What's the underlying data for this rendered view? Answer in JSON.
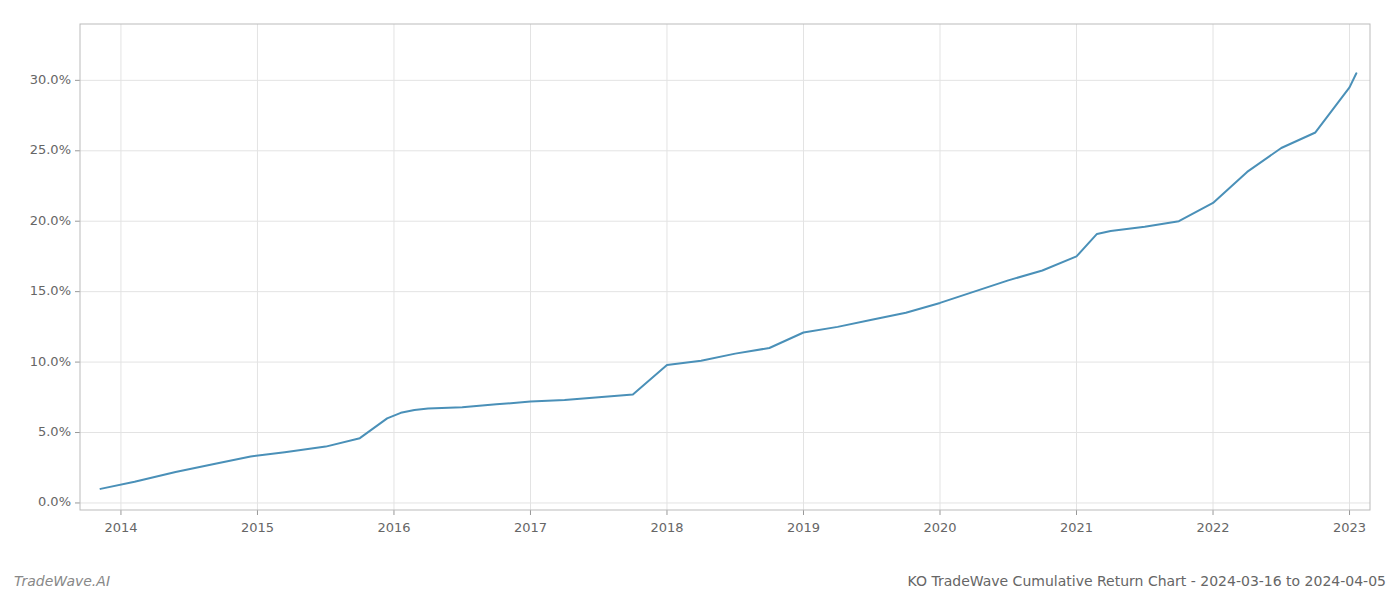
{
  "chart_data": {
    "type": "line",
    "title": "KO TradeWave Cumulative Return Chart - 2024-03-16 to 2024-04-05",
    "annotations": [
      "TradeWave.AI"
    ],
    "color": "#4a90b8",
    "grid": true,
    "x": [
      2013.85,
      2014.1,
      2014.4,
      2014.7,
      2014.95,
      2015.2,
      2015.5,
      2015.75,
      2015.95,
      2016.05,
      2016.15,
      2016.25,
      2016.5,
      2016.75,
      2017.0,
      2017.25,
      2017.5,
      2017.75,
      2018.0,
      2018.25,
      2018.5,
      2018.75,
      2019.0,
      2019.25,
      2019.5,
      2019.75,
      2020.0,
      2020.25,
      2020.5,
      2020.75,
      2021.0,
      2021.15,
      2021.25,
      2021.5,
      2021.75,
      2022.0,
      2022.25,
      2022.5,
      2022.75,
      2023.0,
      2023.05
    ],
    "values": [
      0.01,
      0.015,
      0.022,
      0.028,
      0.033,
      0.036,
      0.04,
      0.046,
      0.06,
      0.064,
      0.066,
      0.067,
      0.068,
      0.07,
      0.072,
      0.073,
      0.075,
      0.077,
      0.098,
      0.101,
      0.106,
      0.11,
      0.121,
      0.125,
      0.13,
      0.135,
      0.142,
      0.15,
      0.158,
      0.165,
      0.175,
      0.191,
      0.193,
      0.196,
      0.2,
      0.213,
      0.235,
      0.252,
      0.263,
      0.295,
      0.305
    ],
    "xlim": [
      2013.7,
      2023.15
    ],
    "xticks": [
      2014,
      2015,
      2016,
      2017,
      2018,
      2019,
      2020,
      2021,
      2022,
      2023
    ],
    "ylim": [
      -0.005,
      0.34
    ],
    "yticks": [
      {
        "value": 0.0,
        "label": "0.0%"
      },
      {
        "value": 0.05,
        "label": "5.0%"
      },
      {
        "value": 0.1,
        "label": "10.0%"
      },
      {
        "value": 0.15,
        "label": "15.0%"
      },
      {
        "value": 0.2,
        "label": "20.0%"
      },
      {
        "value": 0.25,
        "label": "25.0%"
      },
      {
        "value": 0.3,
        "label": "30.0%"
      }
    ]
  }
}
